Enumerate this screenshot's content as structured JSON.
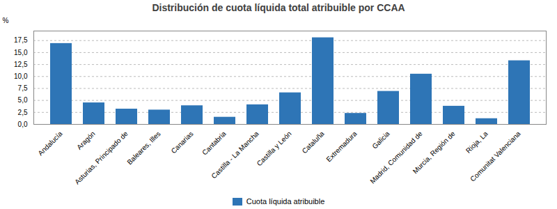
{
  "chart_data": {
    "type": "bar",
    "title": "Distribución de cuota líquida total atribuible por CCAA",
    "categories": [
      "Andalucía",
      "Aragón",
      "Asturias, Principado de",
      "Baleares, Illes",
      "Canarias",
      "Cantabria",
      "Castilla - La Mancha",
      "Castilla y León",
      "Cataluña",
      "Extremadura",
      "Galicia",
      "Madrid, Comunidad de",
      "Murcia, Región de",
      "Rioja, La",
      "Comunitat Valenciana"
    ],
    "series": [
      {
        "name": "Cuota líquida atribuible",
        "color": "#2E75B6",
        "values": [
          16.9,
          4.5,
          3.2,
          3.0,
          3.9,
          1.5,
          4.1,
          6.6,
          18.1,
          2.3,
          6.9,
          10.5,
          3.8,
          1.2,
          13.3
        ]
      }
    ],
    "ylabel": "%",
    "ylim": [
      0,
      19.5
    ],
    "yticks": [
      {
        "value": 0.0,
        "label": "0,0"
      },
      {
        "value": 2.5,
        "label": "2,5"
      },
      {
        "value": 5.0,
        "label": "5,0"
      },
      {
        "value": 7.5,
        "label": "7,5"
      },
      {
        "value": 10.0,
        "label": "10,0"
      },
      {
        "value": 12.5,
        "label": "12,5"
      },
      {
        "value": 15.0,
        "label": "15,0"
      },
      {
        "value": 17.5,
        "label": "17,5"
      }
    ],
    "grid": true,
    "legend": "bottom"
  }
}
